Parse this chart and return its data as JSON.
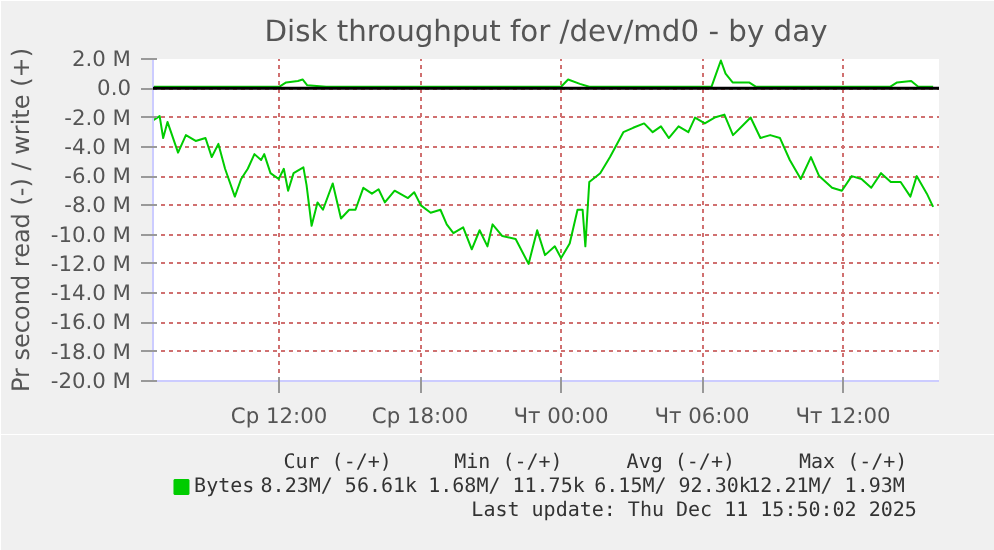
{
  "chart_data": {
    "type": "line",
    "title": "Disk throughput for /dev/md0 - by day",
    "ylabel": "Pr second read (-) / write (+)",
    "xlim": [
      "2025-12-10T06:38",
      "2025-12-11T16:05"
    ],
    "ylim": [
      -20,
      2
    ],
    "xticks": [
      {
        "value": "2025-12-10T12:00",
        "label": "Ср 12:00"
      },
      {
        "value": "2025-12-10T18:00",
        "label": "Ср 18:00"
      },
      {
        "value": "2025-12-11T00:00",
        "label": "Чт 00:00"
      },
      {
        "value": "2025-12-11T06:00",
        "label": "Чт 06:00"
      },
      {
        "value": "2025-12-11T12:00",
        "label": "Чт 12:00"
      }
    ],
    "yticks": [
      {
        "value": 2,
        "label": "2.0 M"
      },
      {
        "value": 0,
        "label": "0.0"
      },
      {
        "value": -2,
        "label": "-2.0 M"
      },
      {
        "value": -4,
        "label": "-4.0 M"
      },
      {
        "value": -6,
        "label": "-6.0 M"
      },
      {
        "value": -8,
        "label": "-8.0 M"
      },
      {
        "value": -10,
        "label": "-10.0 M"
      },
      {
        "value": -12,
        "label": "-12.0 M"
      },
      {
        "value": -14,
        "label": "-14.0 M"
      },
      {
        "value": -16,
        "label": "-16.0 M"
      },
      {
        "value": -18,
        "label": "-18.0 M"
      },
      {
        "value": -20,
        "label": "-20.0 M"
      }
    ],
    "grid": true,
    "legend": "bottom left",
    "ref_lines": [
      {
        "axis": "y",
        "value": 0,
        "color": "#000000"
      }
    ],
    "series": [
      {
        "name": "Bytes",
        "color": "#00cc00",
        "x": [
          "2025-12-10T06:38",
          "2025-12-10T06:55",
          "2025-12-10T07:04",
          "2025-12-10T07:15",
          "2025-12-10T07:42",
          "2025-12-10T08:02",
          "2025-12-10T08:27",
          "2025-12-10T08:52",
          "2025-12-10T09:08",
          "2025-12-10T09:25",
          "2025-12-10T09:42",
          "2025-12-10T10:07",
          "2025-12-10T10:23",
          "2025-12-10T10:40",
          "2025-12-10T10:57",
          "2025-12-10T11:14",
          "2025-12-10T11:22",
          "2025-12-10T11:38",
          "2025-12-10T11:59",
          "2025-12-10T12:12",
          "2025-12-10T12:23",
          "2025-12-10T12:37",
          "2025-12-10T13:02",
          "2025-12-10T13:10",
          "2025-12-10T13:23",
          "2025-12-10T13:38",
          "2025-12-10T13:52",
          "2025-12-10T14:17",
          "2025-12-10T14:38",
          "2025-12-10T14:59",
          "2025-12-10T15:15",
          "2025-12-10T15:35",
          "2025-12-10T15:57",
          "2025-12-10T16:14",
          "2025-12-10T16:30",
          "2025-12-10T16:55",
          "2025-12-10T17:29",
          "2025-12-10T17:45",
          "2025-12-10T18:02",
          "2025-12-10T18:27",
          "2025-12-10T18:52",
          "2025-12-10T19:08",
          "2025-12-10T19:25",
          "2025-12-10T19:50",
          "2025-12-10T20:12",
          "2025-12-10T20:32",
          "2025-12-10T20:52",
          "2025-12-10T21:05",
          "2025-12-10T21:30",
          "2025-12-10T22:04",
          "2025-12-10T22:37",
          "2025-12-10T22:59",
          "2025-12-10T23:19",
          "2025-12-10T23:44",
          "2025-12-11T00:00",
          "2025-12-11T00:22",
          "2025-12-11T00:42",
          "2025-12-11T00:55",
          "2025-12-11T01:02",
          "2025-12-11T01:12",
          "2025-12-11T01:40",
          "2025-12-11T02:05",
          "2025-12-11T02:39",
          "2025-12-11T03:04",
          "2025-12-11T03:32",
          "2025-12-11T03:54",
          "2025-12-11T04:15",
          "2025-12-11T04:35",
          "2025-12-11T05:00",
          "2025-12-11T05:25",
          "2025-12-11T05:42",
          "2025-12-11T06:07",
          "2025-12-11T06:32",
          "2025-12-11T06:57",
          "2025-12-11T07:19",
          "2025-12-11T07:38",
          "2025-12-11T08:04",
          "2025-12-11T08:29",
          "2025-12-11T08:54",
          "2025-12-11T09:19",
          "2025-12-11T09:44",
          "2025-12-11T10:12",
          "2025-12-11T10:38",
          "2025-12-11T10:59",
          "2025-12-11T11:32",
          "2025-12-11T11:57",
          "2025-12-11T12:22",
          "2025-12-11T12:47",
          "2025-12-11T13:12",
          "2025-12-11T13:37",
          "2025-12-11T14:02",
          "2025-12-11T14:27",
          "2025-12-11T14:52",
          "2025-12-11T15:08",
          "2025-12-11T15:34",
          "2025-12-11T15:50"
        ],
        "values": [
          -2.2,
          -1.9,
          -3.4,
          -2.3,
          -4.4,
          -3.2,
          -3.6,
          -3.4,
          -4.7,
          -3.8,
          -5.5,
          -7.4,
          -6.2,
          -5.5,
          -4.5,
          -4.9,
          -4.5,
          -5.8,
          -6.2,
          -5.5,
          -7.0,
          -5.8,
          -5.4,
          -6.6,
          -9.4,
          -7.8,
          -8.3,
          -6.5,
          -8.9,
          -8.3,
          -8.3,
          -6.8,
          -7.2,
          -6.9,
          -7.8,
          -7.0,
          -7.5,
          -7.1,
          -8.0,
          -8.5,
          -8.3,
          -9.3,
          -9.9,
          -9.5,
          -11.0,
          -9.7,
          -10.8,
          -9.3,
          -10.1,
          -10.3,
          -12.0,
          -9.7,
          -11.4,
          -10.8,
          -11.6,
          -10.6,
          -8.3,
          -8.3,
          -10.8,
          -6.4,
          -5.8,
          -4.7,
          -3.0,
          -2.7,
          -2.4,
          -3.0,
          -2.6,
          -3.4,
          -2.6,
          -3.0,
          -2.0,
          -2.4,
          -2.0,
          -1.8,
          -3.2,
          -2.7,
          -2.0,
          -3.4,
          -3.2,
          -3.4,
          -4.9,
          -6.2,
          -4.7,
          -6.0,
          -6.8,
          -7.0,
          -6.0,
          -6.2,
          -6.8,
          -5.8,
          -6.4,
          -6.4,
          -7.4,
          -6.0,
          -7.2,
          -8.1
        ]
      },
      {
        "color": "#00cc00",
        "x": [
          "2025-12-10T06:38",
          "2025-12-10T12:00",
          "2025-12-10T12:18",
          "2025-12-10T12:48",
          "2025-12-10T13:00",
          "2025-12-10T13:12",
          "2025-12-10T14:00",
          "2025-12-11T00:00",
          "2025-12-11T00:18",
          "2025-12-11T00:48",
          "2025-12-11T01:12",
          "2025-12-11T06:24",
          "2025-12-11T06:36",
          "2025-12-11T06:48",
          "2025-12-11T07:00",
          "2025-12-11T07:18",
          "2025-12-11T08:00",
          "2025-12-11T08:18",
          "2025-12-11T14:00",
          "2025-12-11T14:18",
          "2025-12-11T14:54",
          "2025-12-11T15:12",
          "2025-12-11T15:50"
        ],
        "values": [
          0.1,
          0.1,
          0.4,
          0.5,
          0.6,
          0.2,
          0.1,
          0.1,
          0.6,
          0.3,
          0.1,
          0.1,
          1.0,
          1.9,
          1.0,
          0.4,
          0.4,
          0.1,
          0.1,
          0.4,
          0.5,
          0.1,
          0.1
        ]
      }
    ],
    "annotations": [
      "Cur (-/+)",
      "Min (-/+)",
      "Avg (-/+)",
      "Max (-/+)",
      "8.23M/ 56.61k",
      "1.68M/ 11.75k",
      "6.15M/ 92.30k",
      "12.21M/  1.93M",
      "Last update: Thu Dec 11 15:50:02 2025"
    ]
  }
}
